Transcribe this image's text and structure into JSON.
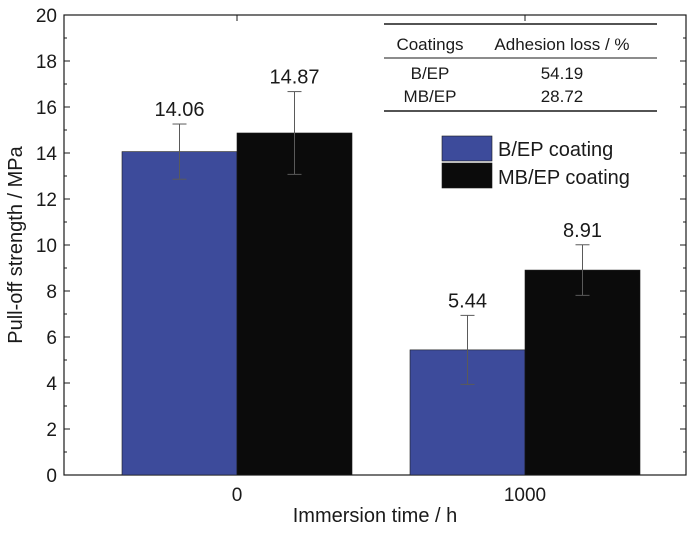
{
  "chart_data": {
    "type": "bar",
    "categories": [
      "0",
      "1000"
    ],
    "series": [
      {
        "name": "B/EP coating",
        "color": "#3d4b9b",
        "values": [
          14.06,
          5.44
        ],
        "errors": [
          1.2,
          1.5
        ],
        "labels": [
          "14.06",
          "5.44"
        ]
      },
      {
        "name": "MB/EP coating",
        "color": "#0b0b0b",
        "values": [
          14.87,
          8.91
        ],
        "errors": [
          1.8,
          1.1
        ],
        "labels": [
          "14.87",
          "8.91"
        ]
      }
    ],
    "xlabel": "Immersion time / h",
    "ylabel": "Pull-off strength / MPa",
    "ylim": [
      0,
      20
    ],
    "yticks": [
      "0",
      "2",
      "4",
      "6",
      "8",
      "10",
      "12",
      "14",
      "16",
      "18",
      "20"
    ],
    "legend_position": "upper-right",
    "grid": false
  },
  "inset_table": {
    "headers": [
      "Coatings",
      "Adhesion loss / %"
    ],
    "rows": [
      [
        "B/EP",
        "54.19"
      ],
      [
        "MB/EP",
        "28.72"
      ]
    ]
  }
}
